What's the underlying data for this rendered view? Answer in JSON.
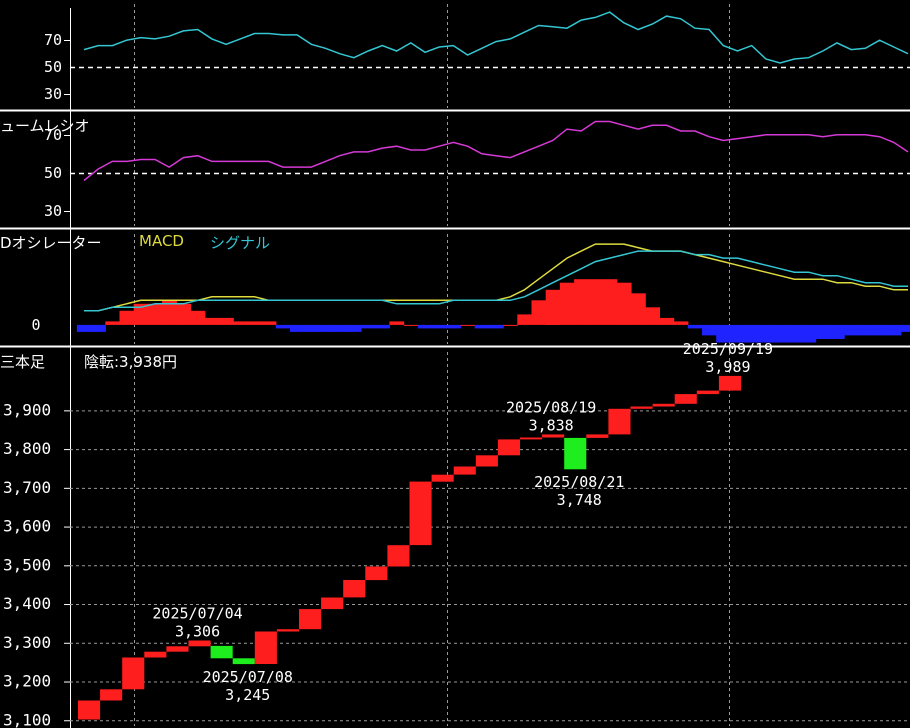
{
  "colors": {
    "rsi_line": "#34c6d2",
    "volume_ratio_line": "#d53ad6",
    "macd_line": "#dedb3f",
    "signal_line": "#34c6d2",
    "hist_positive": "#ff1e1e",
    "hist_negative": "#1e23ff",
    "up_brick": "#ff1e1e",
    "down_brick": "#1eee1e",
    "grid": "#9a9a9a",
    "panel_border": "#ffffff"
  },
  "panels": {
    "rsi": {
      "ticks": [
        "70",
        "50",
        "30"
      ]
    },
    "volume_ratio": {
      "title": "ュームレシオ",
      "ticks": [
        "70",
        "50",
        "30"
      ]
    },
    "macd": {
      "title": "Dオシレーター",
      "macd_label": "MACD",
      "signal_label": "シグナル",
      "ticks": [
        "0"
      ]
    },
    "three_line_break": {
      "title": "三本足",
      "status": "陰転:3,938円",
      "ticks": [
        "3,900",
        "3,800",
        "3,700",
        "3,600",
        "3,500",
        "3,400",
        "3,300",
        "3,200",
        "3,100"
      ]
    }
  },
  "chart_data": [
    {
      "type": "line",
      "name": "rsi_panel",
      "ylim": [
        18,
        100
      ],
      "gridlines": [
        30,
        50,
        70
      ],
      "series": [
        {
          "values": [
            63,
            66,
            66,
            70,
            72,
            71,
            73,
            77,
            78,
            71,
            67,
            71,
            75,
            75,
            74,
            74,
            67,
            64,
            60,
            57,
            62,
            66,
            62,
            68,
            61,
            65,
            66,
            59,
            64,
            69,
            71,
            76,
            81,
            80,
            79,
            85,
            87,
            91,
            83,
            78,
            82,
            88,
            86,
            79,
            78,
            66,
            62,
            66,
            56,
            53,
            56,
            57,
            62,
            68,
            63,
            64,
            70,
            65,
            60
          ]
        }
      ]
    },
    {
      "type": "line",
      "name": "volume_ratio_panel",
      "ylim": [
        21,
        82
      ],
      "gridlines": [
        30,
        50,
        70
      ],
      "series": [
        {
          "values": [
            46,
            52,
            56,
            56,
            57,
            57,
            53,
            58,
            59,
            56,
            56,
            56,
            56,
            56,
            53,
            53,
            53,
            56,
            59,
            61,
            61,
            63,
            64,
            62,
            62,
            64,
            66,
            64,
            60,
            59,
            58,
            61,
            64,
            67,
            73,
            72,
            77,
            77,
            75,
            73,
            75,
            75,
            72,
            72,
            69,
            67,
            68,
            69,
            70,
            70,
            70,
            70,
            69,
            70,
            70,
            70,
            69,
            66,
            61
          ]
        }
      ]
    },
    {
      "type": "line",
      "name": "macd_panel",
      "ylim": [
        -6,
        27
      ],
      "zero_label_value": 0,
      "series": [
        {
          "values": [
            4,
            4,
            5,
            6,
            7,
            7,
            7,
            7,
            7,
            8,
            8,
            8,
            8,
            7,
            7,
            7,
            7,
            7,
            7,
            7,
            7,
            7,
            7,
            7,
            7,
            7,
            7,
            7,
            7,
            7,
            8,
            10,
            13,
            16,
            19,
            21,
            23,
            23,
            23,
            22,
            21,
            21,
            21,
            20,
            19,
            18,
            17,
            16,
            15,
            14,
            13,
            13,
            13,
            12,
            12,
            11,
            11,
            10,
            10
          ]
        },
        {
          "values": [
            4,
            4,
            5,
            5,
            5,
            6,
            6,
            6,
            7,
            7,
            7,
            7,
            7,
            7,
            7,
            7,
            7,
            7,
            7,
            7,
            7,
            7,
            6,
            6,
            6,
            6,
            7,
            7,
            7,
            7,
            7,
            8,
            10,
            12,
            14,
            16,
            18,
            19,
            20,
            21,
            21,
            21,
            21,
            20,
            20,
            19,
            19,
            18,
            17,
            16,
            15,
            15,
            14,
            14,
            13,
            12,
            12,
            11,
            11
          ]
        },
        {
          "values": [
            -2,
            -2,
            1,
            4,
            6,
            6,
            7,
            6,
            4,
            2,
            2,
            1,
            1,
            1,
            -1,
            -2,
            -2,
            -2,
            -2,
            -2,
            -1,
            -1,
            1,
            0,
            -1,
            -1,
            -1,
            0,
            -1,
            -1,
            0,
            3,
            7,
            10,
            12,
            13,
            13,
            13,
            12,
            9,
            5,
            2,
            1,
            -1,
            -3,
            -5,
            -5,
            -5,
            -5,
            -5,
            -5,
            -5,
            -4,
            -4,
            -3,
            -3,
            -3,
            -3,
            -2
          ]
        }
      ]
    },
    {
      "type": "bar",
      "name": "three_line_break",
      "ylim": [
        3080,
        4030
      ],
      "bricks": [
        {
          "dir": "up",
          "open": 3102,
          "close": 3151
        },
        {
          "dir": "up",
          "open": 3151,
          "close": 3180
        },
        {
          "dir": "up",
          "open": 3180,
          "close": 3262
        },
        {
          "dir": "up",
          "open": 3262,
          "close": 3277
        },
        {
          "dir": "up",
          "open": 3277,
          "close": 3291
        },
        {
          "dir": "up",
          "open": 3291,
          "close": 3306
        },
        {
          "dir": "down",
          "open": 3292,
          "close": 3260
        },
        {
          "dir": "down",
          "open": 3260,
          "close": 3245
        },
        {
          "dir": "up",
          "open": 3245,
          "close": 3329
        },
        {
          "dir": "up",
          "open": 3329,
          "close": 3335
        },
        {
          "dir": "up",
          "open": 3335,
          "close": 3387
        },
        {
          "dir": "up",
          "open": 3387,
          "close": 3417
        },
        {
          "dir": "up",
          "open": 3417,
          "close": 3462
        },
        {
          "dir": "up",
          "open": 3462,
          "close": 3497
        },
        {
          "dir": "up",
          "open": 3497,
          "close": 3552
        },
        {
          "dir": "up",
          "open": 3552,
          "close": 3716
        },
        {
          "dir": "up",
          "open": 3716,
          "close": 3734
        },
        {
          "dir": "up",
          "open": 3734,
          "close": 3755
        },
        {
          "dir": "up",
          "open": 3755,
          "close": 3784
        },
        {
          "dir": "up",
          "open": 3784,
          "close": 3825
        },
        {
          "dir": "up",
          "open": 3825,
          "close": 3830
        },
        {
          "dir": "up",
          "open": 3830,
          "close": 3838
        },
        {
          "dir": "down",
          "open": 3829,
          "close": 3748
        },
        {
          "dir": "up",
          "open": 3829,
          "close": 3838
        },
        {
          "dir": "up",
          "open": 3838,
          "close": 3904
        },
        {
          "dir": "up",
          "open": 3904,
          "close": 3910
        },
        {
          "dir": "up",
          "open": 3910,
          "close": 3917
        },
        {
          "dir": "up",
          "open": 3917,
          "close": 3942
        },
        {
          "dir": "up",
          "open": 3942,
          "close": 3951
        },
        {
          "dir": "up",
          "open": 3951,
          "close": 3989
        }
      ],
      "annotations": [
        {
          "brick": 5,
          "anchor": "high",
          "date": "2025/07/04",
          "value": "3,306"
        },
        {
          "brick": 7,
          "anchor": "low",
          "date": "2025/07/08",
          "value": "3,245"
        },
        {
          "brick": 21,
          "anchor": "high",
          "date": "2025/08/19",
          "value": "3,838"
        },
        {
          "brick": 22,
          "anchor": "low",
          "date": "2025/08/21",
          "value": "3,748"
        },
        {
          "brick": 29,
          "anchor": "high",
          "date": "2025/09/19",
          "value": "3,989"
        }
      ]
    }
  ]
}
